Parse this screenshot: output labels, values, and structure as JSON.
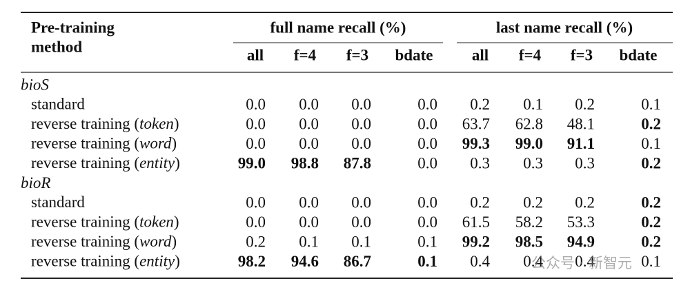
{
  "header": {
    "method": [
      "Pre-training",
      "method"
    ],
    "groups": [
      "full name recall (%)",
      "last name recall (%)"
    ],
    "columns": [
      "all",
      "f=4",
      "f=3",
      "bdate",
      "all",
      "f=4",
      "f=3",
      "bdate"
    ]
  },
  "sections": [
    {
      "name": "bioS",
      "rows": [
        {
          "method": [
            "standard"
          ],
          "values": [
            "0.0",
            "0.0",
            "0.0",
            "0.0",
            "0.2",
            "0.1",
            "0.2",
            "0.1"
          ],
          "bold": []
        },
        {
          "method": [
            "reverse training (",
            "token",
            ")"
          ],
          "values": [
            "0.0",
            "0.0",
            "0.0",
            "0.0",
            "63.7",
            "62.8",
            "48.1",
            "0.2"
          ],
          "bold": [
            7
          ]
        },
        {
          "method": [
            "reverse training (",
            "word",
            ")"
          ],
          "values": [
            "0.0",
            "0.0",
            "0.0",
            "0.0",
            "99.3",
            "99.0",
            "91.1",
            "0.1"
          ],
          "bold": [
            4,
            5,
            6
          ]
        },
        {
          "method": [
            "reverse training (",
            "entity",
            ")"
          ],
          "values": [
            "99.0",
            "98.8",
            "87.8",
            "0.0",
            "0.3",
            "0.3",
            "0.3",
            "0.2"
          ],
          "bold": [
            0,
            1,
            2,
            7
          ]
        }
      ]
    },
    {
      "name": "bioR",
      "rows": [
        {
          "method": [
            "standard"
          ],
          "values": [
            "0.0",
            "0.0",
            "0.0",
            "0.0",
            "0.2",
            "0.2",
            "0.2",
            "0.2"
          ],
          "bold": [
            7
          ]
        },
        {
          "method": [
            "reverse training (",
            "token",
            ")"
          ],
          "values": [
            "0.0",
            "0.0",
            "0.0",
            "0.0",
            "61.5",
            "58.2",
            "53.3",
            "0.2"
          ],
          "bold": [
            7
          ]
        },
        {
          "method": [
            "reverse training (",
            "word",
            ")"
          ],
          "values": [
            "0.2",
            "0.1",
            "0.1",
            "0.1",
            "99.2",
            "98.5",
            "94.9",
            "0.2"
          ],
          "bold": [
            4,
            5,
            6,
            7
          ]
        },
        {
          "method": [
            "reverse training (",
            "entity",
            ")"
          ],
          "values": [
            "98.2",
            "94.6",
            "86.7",
            "0.1",
            "0.4",
            "0.4",
            "0.4",
            "0.1"
          ],
          "bold": [
            0,
            1,
            2,
            3
          ]
        }
      ]
    }
  ],
  "watermark": "公众号 · 新智元"
}
